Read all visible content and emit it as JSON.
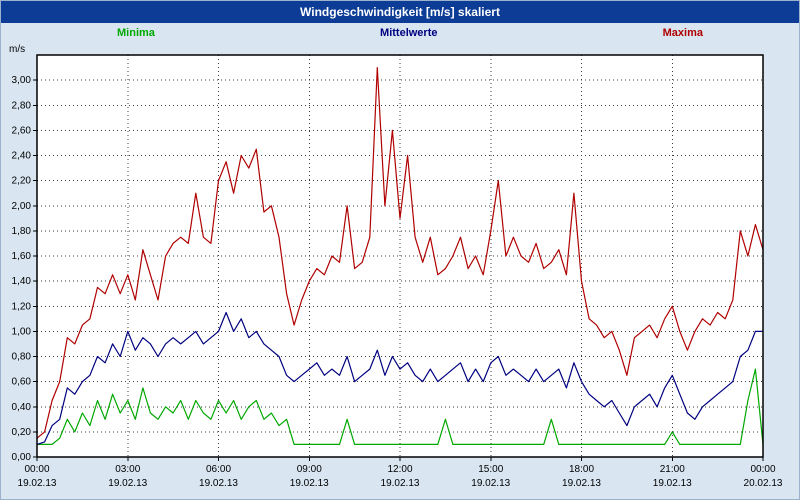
{
  "window": {
    "title": "Windgeschwindigkeit [m/s] skaliert"
  },
  "legend": {
    "items": [
      {
        "label": "Minima",
        "color": "#00a800"
      },
      {
        "label": "Mittelwerte",
        "color": "#000080"
      },
      {
        "label": "Maxima",
        "color": "#b00000"
      }
    ]
  },
  "chart_data": {
    "type": "line",
    "title": "Windgeschwindigkeit [m/s] skaliert",
    "ylabel": "m/s",
    "ylim": [
      0,
      3.2
    ],
    "ytick_step": 0.2,
    "ytick_labels": [
      "0,00",
      "0,20",
      "0,40",
      "0,60",
      "0,80",
      "1,00",
      "1,20",
      "1,40",
      "1,60",
      "1,80",
      "2,00",
      "2,20",
      "2,40",
      "2,60",
      "2,80",
      "3,00"
    ],
    "grid": true,
    "legend_position": "top",
    "xtick_minutes": [
      0,
      180,
      360,
      540,
      720,
      900,
      1080,
      1260,
      1440
    ],
    "xtick_labels": [
      "00:00",
      "03:00",
      "06:00",
      "09:00",
      "12:00",
      "15:00",
      "18:00",
      "21:00",
      "00:00"
    ],
    "xtick_dates": [
      "19.02.13",
      "19.02.13",
      "19.02.13",
      "19.02.13",
      "19.02.13",
      "19.02.13",
      "19.02.13",
      "19.02.13",
      "20.02.13"
    ],
    "x_minutes": [
      0,
      15,
      30,
      45,
      60,
      75,
      90,
      105,
      120,
      135,
      150,
      165,
      180,
      195,
      210,
      225,
      240,
      255,
      270,
      285,
      300,
      315,
      330,
      345,
      360,
      375,
      390,
      405,
      420,
      435,
      450,
      465,
      480,
      495,
      510,
      525,
      540,
      555,
      570,
      585,
      600,
      615,
      630,
      645,
      660,
      675,
      690,
      705,
      720,
      735,
      750,
      765,
      780,
      795,
      810,
      825,
      840,
      855,
      870,
      885,
      900,
      915,
      930,
      945,
      960,
      975,
      990,
      1005,
      1020,
      1035,
      1050,
      1065,
      1080,
      1095,
      1110,
      1125,
      1140,
      1155,
      1170,
      1185,
      1200,
      1215,
      1230,
      1245,
      1260,
      1275,
      1290,
      1305,
      1320,
      1335,
      1350,
      1365,
      1380,
      1395,
      1410,
      1425,
      1440
    ],
    "series": [
      {
        "name": "Minima",
        "color": "#00a800",
        "values": [
          0.1,
          0.1,
          0.1,
          0.15,
          0.3,
          0.2,
          0.35,
          0.25,
          0.45,
          0.3,
          0.5,
          0.35,
          0.45,
          0.3,
          0.55,
          0.35,
          0.3,
          0.4,
          0.35,
          0.45,
          0.3,
          0.45,
          0.35,
          0.3,
          0.45,
          0.35,
          0.45,
          0.3,
          0.4,
          0.45,
          0.3,
          0.35,
          0.25,
          0.3,
          0.1,
          0.1,
          0.1,
          0.1,
          0.1,
          0.1,
          0.1,
          0.3,
          0.1,
          0.1,
          0.1,
          0.1,
          0.1,
          0.1,
          0.1,
          0.1,
          0.1,
          0.1,
          0.1,
          0.1,
          0.3,
          0.1,
          0.1,
          0.1,
          0.1,
          0.1,
          0.1,
          0.1,
          0.1,
          0.1,
          0.1,
          0.1,
          0.1,
          0.1,
          0.3,
          0.1,
          0.1,
          0.1,
          0.1,
          0.1,
          0.1,
          0.1,
          0.1,
          0.1,
          0.1,
          0.1,
          0.1,
          0.1,
          0.1,
          0.1,
          0.2,
          0.1,
          0.1,
          0.1,
          0.1,
          0.1,
          0.1,
          0.1,
          0.1,
          0.1,
          0.45,
          0.7,
          0.1
        ]
      },
      {
        "name": "Mittelwerte",
        "color": "#000080",
        "values": [
          0.1,
          0.12,
          0.25,
          0.3,
          0.55,
          0.5,
          0.6,
          0.65,
          0.8,
          0.75,
          0.9,
          0.8,
          1.0,
          0.85,
          0.95,
          0.9,
          0.8,
          0.9,
          0.95,
          0.9,
          0.95,
          1.0,
          0.9,
          0.95,
          1.0,
          1.15,
          1.0,
          1.1,
          0.95,
          1.0,
          0.9,
          0.85,
          0.8,
          0.65,
          0.6,
          0.65,
          0.7,
          0.75,
          0.65,
          0.7,
          0.65,
          0.8,
          0.6,
          0.65,
          0.7,
          0.85,
          0.65,
          0.8,
          0.7,
          0.75,
          0.65,
          0.6,
          0.7,
          0.6,
          0.65,
          0.7,
          0.75,
          0.6,
          0.7,
          0.6,
          0.75,
          0.8,
          0.65,
          0.7,
          0.65,
          0.6,
          0.7,
          0.6,
          0.65,
          0.7,
          0.55,
          0.75,
          0.6,
          0.5,
          0.45,
          0.4,
          0.45,
          0.35,
          0.25,
          0.4,
          0.45,
          0.5,
          0.4,
          0.55,
          0.65,
          0.5,
          0.35,
          0.3,
          0.4,
          0.45,
          0.5,
          0.55,
          0.6,
          0.8,
          0.85,
          1.0,
          1.0
        ]
      },
      {
        "name": "Maxima",
        "color": "#b00000",
        "values": [
          0.15,
          0.2,
          0.45,
          0.6,
          0.95,
          0.9,
          1.05,
          1.1,
          1.35,
          1.3,
          1.45,
          1.3,
          1.45,
          1.25,
          1.65,
          1.45,
          1.25,
          1.6,
          1.7,
          1.75,
          1.7,
          2.1,
          1.75,
          1.7,
          2.2,
          2.35,
          2.1,
          2.4,
          2.3,
          2.45,
          1.95,
          2.0,
          1.75,
          1.3,
          1.05,
          1.25,
          1.4,
          1.5,
          1.45,
          1.6,
          1.55,
          2.0,
          1.5,
          1.55,
          1.75,
          3.1,
          2.0,
          2.6,
          1.9,
          2.4,
          1.75,
          1.55,
          1.75,
          1.45,
          1.5,
          1.6,
          1.75,
          1.5,
          1.6,
          1.45,
          1.8,
          2.2,
          1.6,
          1.75,
          1.6,
          1.55,
          1.7,
          1.5,
          1.55,
          1.65,
          1.45,
          2.1,
          1.4,
          1.1,
          1.05,
          0.95,
          1.0,
          0.85,
          0.65,
          0.95,
          1.0,
          1.05,
          0.95,
          1.1,
          1.2,
          1.0,
          0.85,
          1.0,
          1.1,
          1.05,
          1.15,
          1.1,
          1.25,
          1.8,
          1.6,
          1.85,
          1.65
        ]
      }
    ]
  }
}
